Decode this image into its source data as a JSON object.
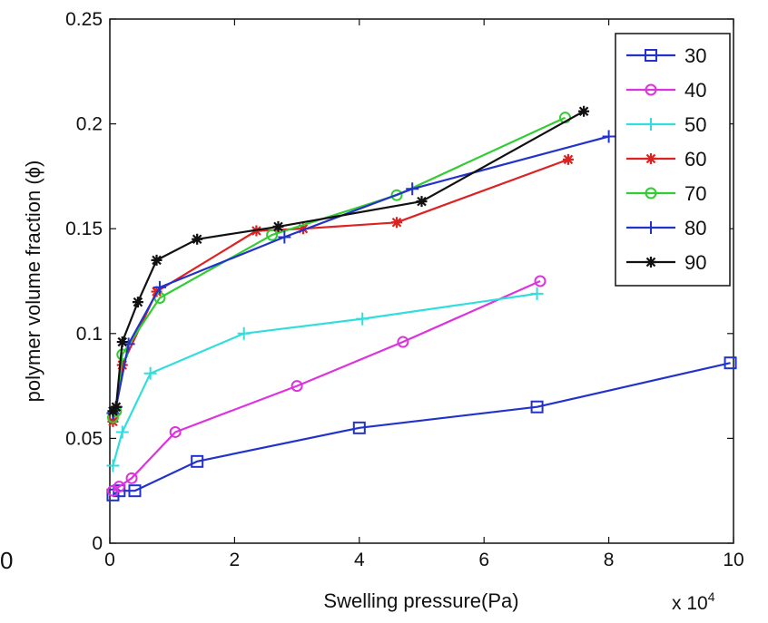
{
  "stray_label": "0",
  "chart_data": {
    "type": "line",
    "xlabel": "Swelling pressure(Pa)",
    "ylabel": "polymer volume fraction (ϕ)",
    "x_multiplier_label": "x 10",
    "x_multiplier_exp": "4",
    "xlim": [
      0,
      10
    ],
    "ylim": [
      0,
      0.25
    ],
    "xticks": [
      0,
      2,
      4,
      6,
      8,
      10
    ],
    "xtick_labels": [
      "0",
      "2",
      "4",
      "6",
      "8",
      "10"
    ],
    "yticks": [
      0,
      0.05,
      0.1,
      0.15,
      0.2,
      0.25
    ],
    "ytick_labels": [
      "0",
      "0.05",
      "0.1",
      "0.15",
      "0.2",
      "0.25"
    ],
    "grid": false,
    "legend_position": "top-right",
    "series": [
      {
        "name": "30",
        "color": "#2233cc",
        "marker": "square",
        "x": [
          0.05,
          0.15,
          0.4,
          1.4,
          4.0,
          6.85,
          9.95
        ],
        "y": [
          0.023,
          0.025,
          0.025,
          0.039,
          0.055,
          0.065,
          0.086
        ]
      },
      {
        "name": "40",
        "color": "#dd33dd",
        "marker": "circle",
        "x": [
          0.05,
          0.15,
          0.35,
          1.05,
          3.0,
          4.7,
          6.9
        ],
        "y": [
          0.025,
          0.027,
          0.031,
          0.053,
          0.075,
          0.096,
          0.125
        ]
      },
      {
        "name": "50",
        "color": "#33dddd",
        "marker": "plus",
        "x": [
          0.05,
          0.2,
          0.65,
          2.15,
          4.05,
          6.85
        ],
        "y": [
          0.037,
          0.053,
          0.081,
          0.1,
          0.107,
          0.119
        ]
      },
      {
        "name": "60",
        "color": "#dd2222",
        "marker": "star",
        "x": [
          0.05,
          0.1,
          0.2,
          0.75,
          2.35,
          3.1,
          4.6,
          7.35
        ],
        "y": [
          0.058,
          0.065,
          0.085,
          0.12,
          0.149,
          0.15,
          0.153,
          0.183
        ]
      },
      {
        "name": "70",
        "color": "#33cc33",
        "marker": "circle",
        "x": [
          0.05,
          0.1,
          0.2,
          0.8,
          2.6,
          4.6,
          7.3
        ],
        "y": [
          0.06,
          0.063,
          0.09,
          0.117,
          0.147,
          0.166,
          0.203
        ]
      },
      {
        "name": "80",
        "color": "#2233cc",
        "marker": "plus",
        "x": [
          0.05,
          0.1,
          0.3,
          0.8,
          2.8,
          4.85,
          8.0
        ],
        "y": [
          0.062,
          0.065,
          0.095,
          0.122,
          0.146,
          0.169,
          0.194
        ]
      },
      {
        "name": "90",
        "color": "#111111",
        "marker": "star",
        "x": [
          0.05,
          0.1,
          0.2,
          0.45,
          0.75,
          1.4,
          2.7,
          5.0,
          7.6
        ],
        "y": [
          0.063,
          0.065,
          0.096,
          0.115,
          0.135,
          0.145,
          0.151,
          0.163,
          0.206
        ]
      }
    ]
  }
}
